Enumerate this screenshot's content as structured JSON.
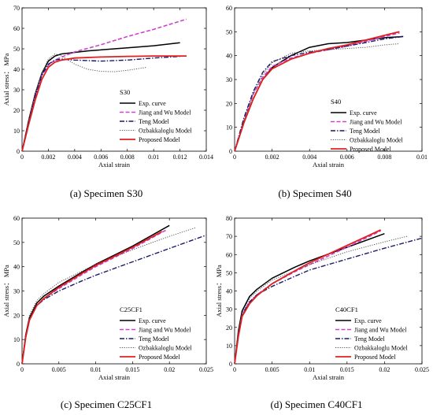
{
  "legend_entries": [
    "Exp. curve",
    "Jiang and Wu Model",
    "Teng Model",
    "Ozbakkaloglu Model",
    "Proposed Model"
  ],
  "series_colors": {
    "Exp. curve": "#000000",
    "Jiang and Wu Model": "#cc44cc",
    "Teng Model": "#1a1a66",
    "Ozbakkaloglu Model": "#555555",
    "Proposed Model": "#e02020"
  },
  "chart_data": [
    {
      "type": "line",
      "caption": "(a) Specimen S30",
      "specimen_label": "S30",
      "xlabel": "Axial strain",
      "ylabel": "Axial stress： MPa",
      "xlim": [
        0,
        0.014
      ],
      "ylim": [
        0,
        70
      ],
      "xticks": [
        "0",
        "0.002",
        "0.004",
        "0.006",
        "0.008",
        "0.01",
        "0.012",
        "0.014"
      ],
      "yticks": [
        "0",
        "10",
        "20",
        "30",
        "40",
        "50",
        "60",
        "70"
      ],
      "legend_position": "bottom-right",
      "grid": false,
      "series": [
        {
          "name": "Exp. curve",
          "x": [
            0,
            0.0005,
            0.001,
            0.0015,
            0.002,
            0.0025,
            0.003,
            0.005,
            0.008,
            0.01,
            0.012
          ],
          "y": [
            0,
            15,
            28,
            38,
            44,
            46.5,
            47.5,
            49,
            50.5,
            51.5,
            53
          ]
        },
        {
          "name": "Jiang and Wu Model",
          "x": [
            0,
            0.0005,
            0.001,
            0.0015,
            0.002,
            0.0025,
            0.003,
            0.004,
            0.006,
            0.008,
            0.01,
            0.0125
          ],
          "y": [
            0,
            14,
            27,
            37,
            42,
            44.5,
            46,
            48.5,
            52,
            56,
            59.5,
            64.5
          ]
        },
        {
          "name": "Teng Model",
          "x": [
            0,
            0.0005,
            0.001,
            0.0015,
            0.002,
            0.0025,
            0.003,
            0.004,
            0.006,
            0.008,
            0.01,
            0.0125
          ],
          "y": [
            0,
            14,
            27,
            37,
            42.5,
            44.5,
            45,
            44.5,
            44,
            44.5,
            45.5,
            46.5
          ]
        },
        {
          "name": "Ozbakkaloglu Model",
          "x": [
            0,
            0.0005,
            0.001,
            0.0015,
            0.002,
            0.0025,
            0.003,
            0.004,
            0.005,
            0.006,
            0.007,
            0.008,
            0.0095
          ],
          "y": [
            0,
            14.5,
            28,
            38,
            45,
            47.5,
            46.5,
            42.5,
            40,
            39,
            38.8,
            39.5,
            41
          ]
        },
        {
          "name": "Proposed Model",
          "x": [
            0,
            0.0005,
            0.001,
            0.0015,
            0.002,
            0.0025,
            0.003,
            0.004,
            0.006,
            0.008,
            0.01,
            0.0125
          ],
          "y": [
            0,
            13,
            25,
            35,
            41,
            43.5,
            44.5,
            45.5,
            46,
            46.3,
            46.5,
            46.5
          ]
        }
      ]
    },
    {
      "type": "line",
      "caption": "(b) Specimen S40",
      "specimen_label": "S40",
      "xlabel": "Axial strain",
      "ylabel": "",
      "xlim": [
        0,
        0.01
      ],
      "ylim": [
        0,
        60
      ],
      "xticks": [
        "0",
        "0.002",
        "0.004",
        "0.006",
        "0.008",
        "0.01"
      ],
      "yticks": [
        "0",
        "10",
        "20",
        "30",
        "40",
        "50",
        "60"
      ],
      "legend_position": "bottom-right",
      "grid": false,
      "series": [
        {
          "name": "Exp. curve",
          "x": [
            0,
            0.0005,
            0.001,
            0.0015,
            0.002,
            0.003,
            0.004,
            0.005,
            0.006,
            0.007,
            0.008,
            0.009
          ],
          "y": [
            0,
            12,
            22,
            30,
            35,
            40,
            43.5,
            45,
            45.5,
            46.5,
            47.5,
            48
          ]
        },
        {
          "name": "Jiang and Wu Model",
          "x": [
            0,
            0.0005,
            0.001,
            0.0015,
            0.002,
            0.003,
            0.004,
            0.005,
            0.006,
            0.007,
            0.008,
            0.0088
          ],
          "y": [
            0,
            13,
            24,
            31,
            35.5,
            39,
            41,
            42.5,
            44,
            46,
            48,
            49.5
          ]
        },
        {
          "name": "Teng Model",
          "x": [
            0,
            0.0005,
            0.001,
            0.0015,
            0.002,
            0.003,
            0.004,
            0.005,
            0.006,
            0.007,
            0.008,
            0.009
          ],
          "y": [
            0,
            14,
            25,
            33,
            37.5,
            40,
            41.5,
            42.5,
            44,
            45.5,
            47,
            48
          ]
        },
        {
          "name": "Ozbakkaloglu Model",
          "x": [
            0,
            0.0005,
            0.001,
            0.0015,
            0.002,
            0.003,
            0.004,
            0.005,
            0.006,
            0.007,
            0.008,
            0.0088
          ],
          "y": [
            0,
            13,
            24,
            32,
            37,
            41,
            42,
            42.5,
            43,
            43.5,
            44.5,
            45
          ]
        },
        {
          "name": "Proposed Model",
          "x": [
            0,
            0.0005,
            0.001,
            0.0015,
            0.002,
            0.003,
            0.004,
            0.005,
            0.006,
            0.007,
            0.008,
            0.0088
          ],
          "y": [
            0,
            12,
            22,
            30,
            34.5,
            38.5,
            41,
            43,
            44.5,
            46.5,
            48.5,
            50
          ]
        }
      ]
    },
    {
      "type": "line",
      "caption": "(c) Specimen C25CF1",
      "specimen_label": "C25CF1",
      "xlabel": "Axial strain",
      "ylabel": "Axial stress： MPa",
      "xlim": [
        0,
        0.025
      ],
      "ylim": [
        0,
        60
      ],
      "xticks": [
        "0",
        "0.005",
        "0.01",
        "0.015",
        "0.02",
        "0.025"
      ],
      "yticks": [
        "0",
        "10",
        "20",
        "30",
        "40",
        "50",
        "60"
      ],
      "legend_position": "bottom-right",
      "grid": false,
      "series": [
        {
          "name": "Exp. curve",
          "x": [
            0,
            0.0005,
            0.001,
            0.002,
            0.003,
            0.005,
            0.008,
            0.01,
            0.015,
            0.02
          ],
          "y": [
            0,
            12,
            19,
            25,
            28,
            32,
            37.5,
            41,
            48.5,
            57
          ]
        },
        {
          "name": "Jiang and Wu Model",
          "x": [
            0,
            0.0005,
            0.001,
            0.002,
            0.003,
            0.005,
            0.008,
            0.01,
            0.015,
            0.0195
          ],
          "y": [
            0,
            11,
            18,
            24,
            27,
            31,
            36.5,
            40,
            47.5,
            55
          ]
        },
        {
          "name": "Teng Model",
          "x": [
            0,
            0.0005,
            0.001,
            0.002,
            0.003,
            0.005,
            0.008,
            0.01,
            0.015,
            0.02,
            0.025
          ],
          "y": [
            0,
            11,
            18,
            24,
            26.5,
            30,
            34,
            36.5,
            42,
            47.5,
            53
          ]
        },
        {
          "name": "Ozbakkaloglu Model",
          "x": [
            0,
            0.0005,
            0.001,
            0.002,
            0.003,
            0.005,
            0.008,
            0.01,
            0.015,
            0.02,
            0.0235
          ],
          "y": [
            0,
            12,
            20,
            26,
            29,
            33.5,
            38,
            41,
            47,
            52.5,
            56
          ]
        },
        {
          "name": "Proposed Model",
          "x": [
            0,
            0.0005,
            0.001,
            0.002,
            0.003,
            0.005,
            0.008,
            0.01,
            0.015,
            0.019
          ],
          "y": [
            0,
            11,
            18,
            24,
            27,
            31.5,
            37,
            40.5,
            48,
            54.5
          ]
        }
      ]
    },
    {
      "type": "line",
      "caption": "(d) Specimen C40CF1",
      "specimen_label": "C40CF1",
      "xlabel": "Axial strain",
      "ylabel": "Axial stress： MPa",
      "xlim": [
        0,
        0.025
      ],
      "ylim": [
        0,
        80
      ],
      "xticks": [
        "0",
        "0.005",
        "0.01",
        "0.015",
        "0.02",
        "0.025"
      ],
      "yticks": [
        "0",
        "10",
        "20",
        "30",
        "40",
        "50",
        "60",
        "70",
        "80"
      ],
      "legend_position": "bottom-right",
      "grid": false,
      "series": [
        {
          "name": "Exp. curve",
          "x": [
            0,
            0.0005,
            0.001,
            0.002,
            0.003,
            0.005,
            0.008,
            0.01,
            0.015,
            0.02
          ],
          "y": [
            0,
            18,
            29,
            37,
            41,
            47,
            53,
            56.5,
            64,
            71.5
          ]
        },
        {
          "name": "Jiang and Wu Model",
          "x": [
            0,
            0.0005,
            0.001,
            0.002,
            0.003,
            0.005,
            0.008,
            0.01,
            0.015,
            0.0195
          ],
          "y": [
            0,
            16,
            27,
            34,
            38,
            44,
            50.5,
            54.5,
            64,
            73
          ]
        },
        {
          "name": "Teng Model",
          "x": [
            0,
            0.0005,
            0.001,
            0.002,
            0.003,
            0.005,
            0.008,
            0.01,
            0.015,
            0.02,
            0.025
          ],
          "y": [
            0,
            16,
            27,
            34,
            38,
            42.5,
            48,
            51.5,
            57.5,
            63.5,
            69
          ]
        },
        {
          "name": "Ozbakkaloglu Model",
          "x": [
            0,
            0.0005,
            0.001,
            0.002,
            0.003,
            0.005,
            0.008,
            0.01,
            0.015,
            0.02,
            0.023
          ],
          "y": [
            0,
            17,
            28,
            36,
            40,
            46,
            51,
            54.5,
            61.5,
            67,
            70
          ]
        },
        {
          "name": "Proposed Model",
          "x": [
            0,
            0.0005,
            0.001,
            0.002,
            0.003,
            0.005,
            0.008,
            0.01,
            0.015,
            0.0195
          ],
          "y": [
            0,
            15,
            26,
            33,
            37.5,
            44,
            51,
            55.5,
            65,
            73.5
          ]
        }
      ]
    }
  ]
}
